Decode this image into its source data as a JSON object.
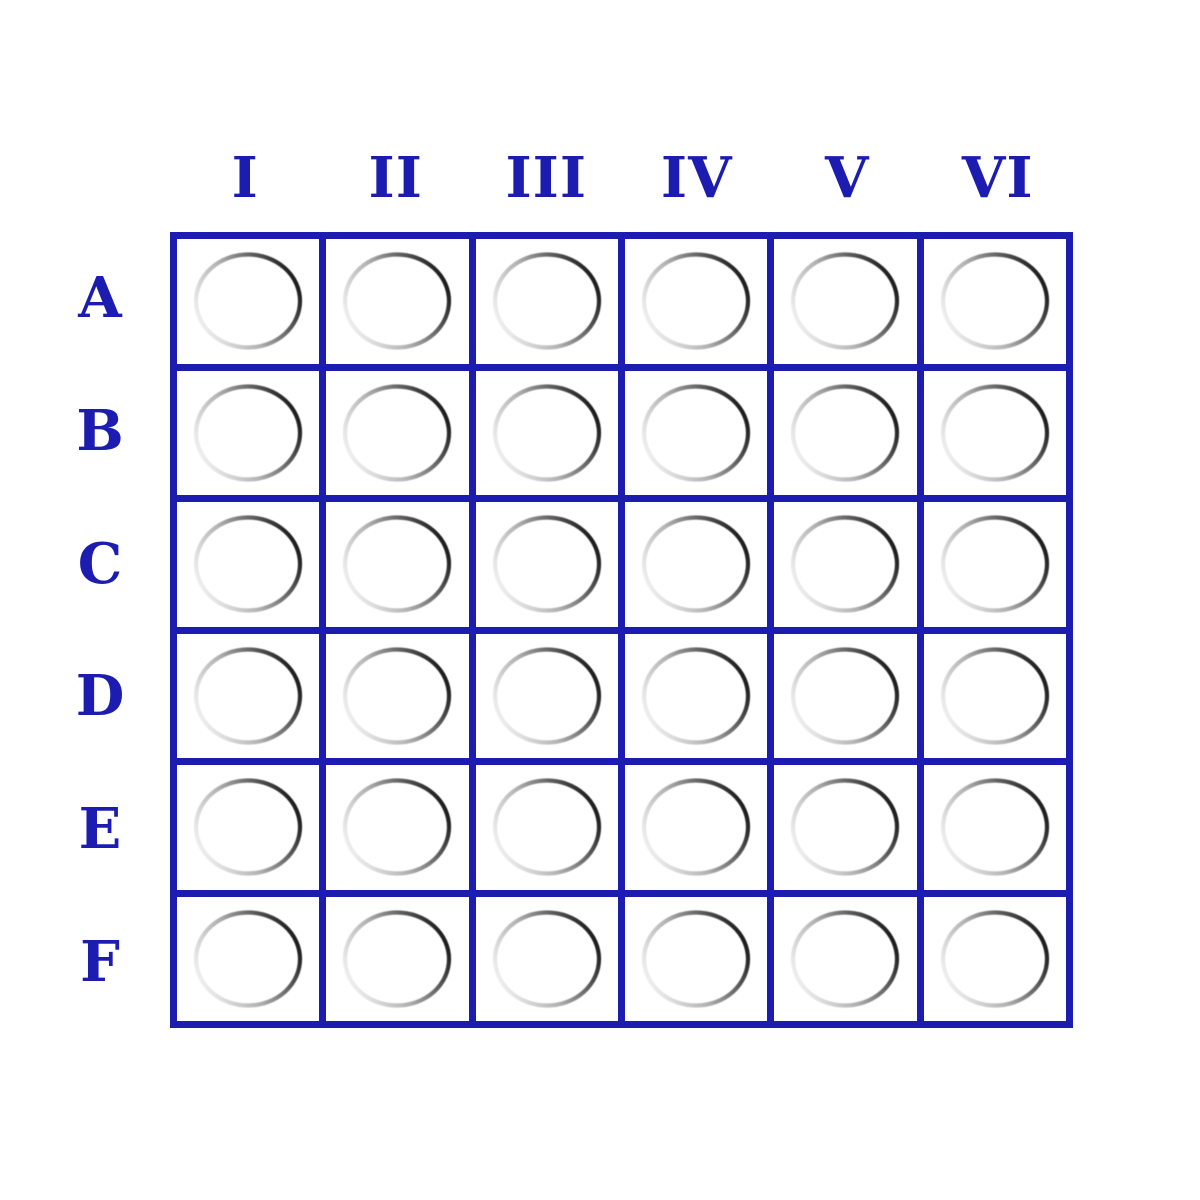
{
  "colors": {
    "grid_blue": "#1c1cb0",
    "cell_background": "#ffffff",
    "page_background": "#ffffff",
    "ring_light": "#f3f3f3",
    "ring_mid": "#b0b0b0",
    "ring_dark": "#131313"
  },
  "board": {
    "columns": [
      "I",
      "II",
      "III",
      "IV",
      "V",
      "VI"
    ],
    "rows": [
      "A",
      "B",
      "C",
      "D",
      "E",
      "F"
    ],
    "cell_icon": "empty-circle-icon",
    "cells": [
      [
        "empty",
        "empty",
        "empty",
        "empty",
        "empty",
        "empty"
      ],
      [
        "empty",
        "empty",
        "empty",
        "empty",
        "empty",
        "empty"
      ],
      [
        "empty",
        "empty",
        "empty",
        "empty",
        "empty",
        "empty"
      ],
      [
        "empty",
        "empty",
        "empty",
        "empty",
        "empty",
        "empty"
      ],
      [
        "empty",
        "empty",
        "empty",
        "empty",
        "empty",
        "empty"
      ],
      [
        "empty",
        "empty",
        "empty",
        "empty",
        "empty",
        "empty"
      ]
    ]
  }
}
